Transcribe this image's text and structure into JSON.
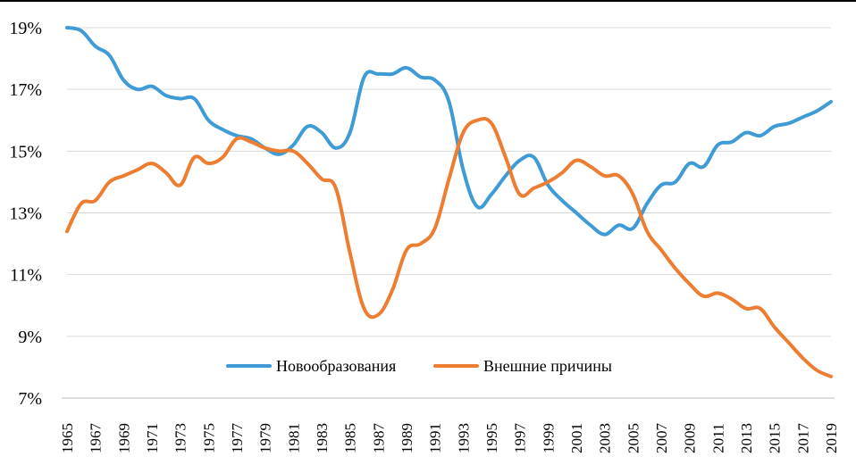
{
  "chart_data": {
    "type": "line",
    "title": "",
    "xlabel": "",
    "ylabel": "",
    "ylim": [
      7,
      19
    ],
    "y_tick_format": "percent",
    "y_ticks": [
      "19%",
      "17%",
      "15%",
      "13%",
      "11%",
      "9%",
      "7%"
    ],
    "x_tick_labels": [
      "1965",
      "1967",
      "1969",
      "1971",
      "1973",
      "1975",
      "1977",
      "1979",
      "1981",
      "1983",
      "1985",
      "1987",
      "1989",
      "1991",
      "1993",
      "1995",
      "1997",
      "1999",
      "2001",
      "2003",
      "2005",
      "2007",
      "2009",
      "2011",
      "2013",
      "2015",
      "2017",
      "2019"
    ],
    "grid": "horizontal",
    "legend_position": "bottom-inside",
    "x": [
      1965,
      1966,
      1967,
      1968,
      1969,
      1970,
      1971,
      1972,
      1973,
      1974,
      1975,
      1976,
      1977,
      1978,
      1979,
      1980,
      1981,
      1982,
      1983,
      1984,
      1985,
      1986,
      1987,
      1988,
      1989,
      1990,
      1991,
      1992,
      1993,
      1994,
      1995,
      1996,
      1997,
      1998,
      1999,
      2000,
      2001,
      2002,
      2003,
      2004,
      2005,
      2006,
      2007,
      2008,
      2009,
      2010,
      2011,
      2012,
      2013,
      2014,
      2015,
      2016,
      2017,
      2018,
      2019
    ],
    "series": [
      {
        "name": "Новообразования",
        "color": "#3e9bd6",
        "values": [
          19.0,
          18.9,
          18.4,
          18.1,
          17.3,
          17.0,
          17.1,
          16.8,
          16.7,
          16.7,
          16.0,
          15.7,
          15.5,
          15.4,
          15.1,
          14.9,
          15.2,
          15.8,
          15.6,
          15.1,
          15.6,
          17.4,
          17.5,
          17.5,
          17.7,
          17.4,
          17.3,
          16.6,
          14.4,
          13.2,
          13.6,
          14.2,
          14.7,
          14.8,
          13.9,
          13.4,
          13.0,
          12.6,
          12.3,
          12.6,
          12.5,
          13.3,
          13.9,
          14.0,
          14.6,
          14.5,
          15.2,
          15.3,
          15.6,
          15.5,
          15.8,
          15.9,
          16.1,
          16.3,
          16.6
        ]
      },
      {
        "name": "Внешние причины",
        "color": "#ed7d31",
        "values": [
          12.4,
          13.3,
          13.4,
          14.0,
          14.2,
          14.4,
          14.6,
          14.3,
          13.9,
          14.8,
          14.6,
          14.8,
          15.4,
          15.3,
          15.1,
          15.0,
          15.0,
          14.6,
          14.1,
          13.8,
          11.7,
          9.9,
          9.7,
          10.5,
          11.8,
          12.0,
          12.5,
          14.1,
          15.6,
          16.0,
          15.9,
          14.8,
          13.6,
          13.8,
          14.0,
          14.3,
          14.7,
          14.5,
          14.2,
          14.2,
          13.6,
          12.4,
          11.8,
          11.2,
          10.7,
          10.3,
          10.4,
          10.2,
          9.9,
          9.9,
          9.3,
          8.8,
          8.3,
          7.9,
          7.7
        ]
      }
    ]
  }
}
